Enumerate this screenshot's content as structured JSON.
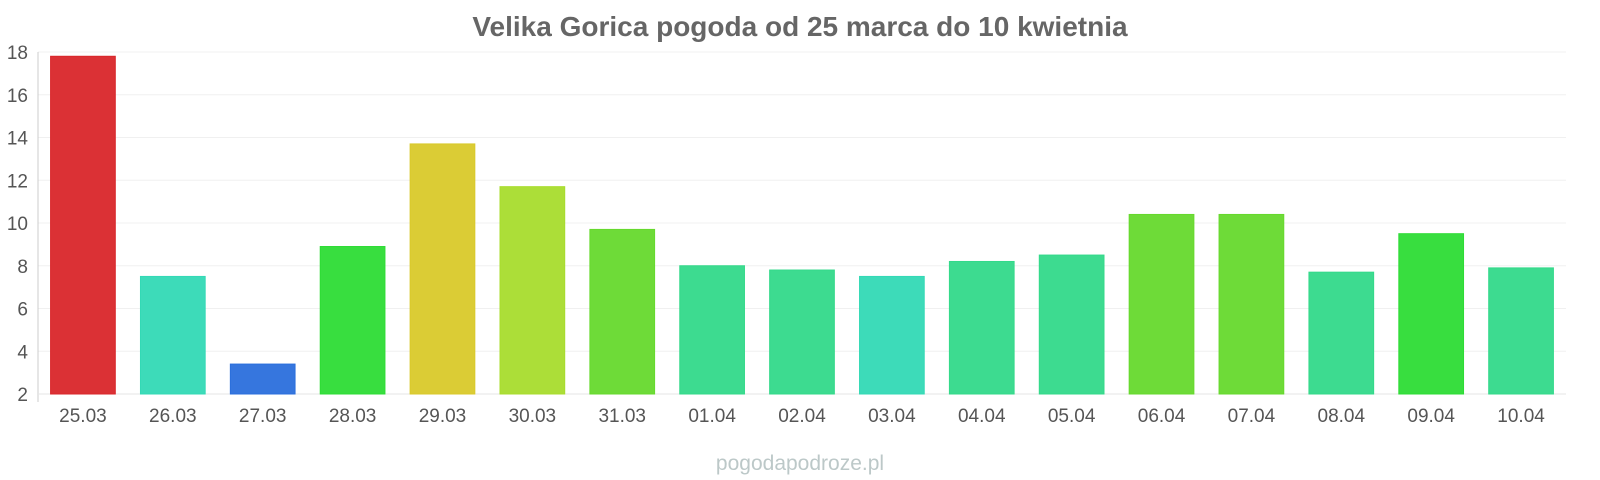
{
  "chart_data": {
    "type": "bar",
    "title": "Velika Gorica pogoda od 25 marca do 10 kwietnia",
    "xlabel": "",
    "ylabel": "",
    "categories": [
      "25.03",
      "26.03",
      "27.03",
      "28.03",
      "29.03",
      "30.03",
      "31.03",
      "01.04",
      "02.04",
      "03.04",
      "04.04",
      "05.04",
      "06.04",
      "07.04",
      "08.04",
      "09.04",
      "10.04"
    ],
    "values": [
      17.8,
      7.5,
      3.4,
      8.9,
      13.7,
      11.7,
      9.7,
      8.0,
      7.8,
      7.5,
      8.2,
      8.5,
      10.4,
      10.4,
      7.7,
      9.5,
      7.9
    ],
    "bar_colors": [
      "#d9262a",
      "#33d9b5",
      "#2b6fdc",
      "#2ddc35",
      "#d9c92a",
      "#a8dc2d",
      "#66d92d",
      "#33d98a",
      "#33d98a",
      "#33d9b5",
      "#33d98a",
      "#33d98a",
      "#66d92d",
      "#66d92d",
      "#33d98a",
      "#2ddc35",
      "#33d98a"
    ],
    "ylim": [
      2,
      18
    ],
    "yticks": [
      2,
      4,
      6,
      8,
      10,
      12,
      14,
      16,
      18
    ],
    "grid": true,
    "legend": "none"
  },
  "watermark": "pogodapodroze.pl"
}
